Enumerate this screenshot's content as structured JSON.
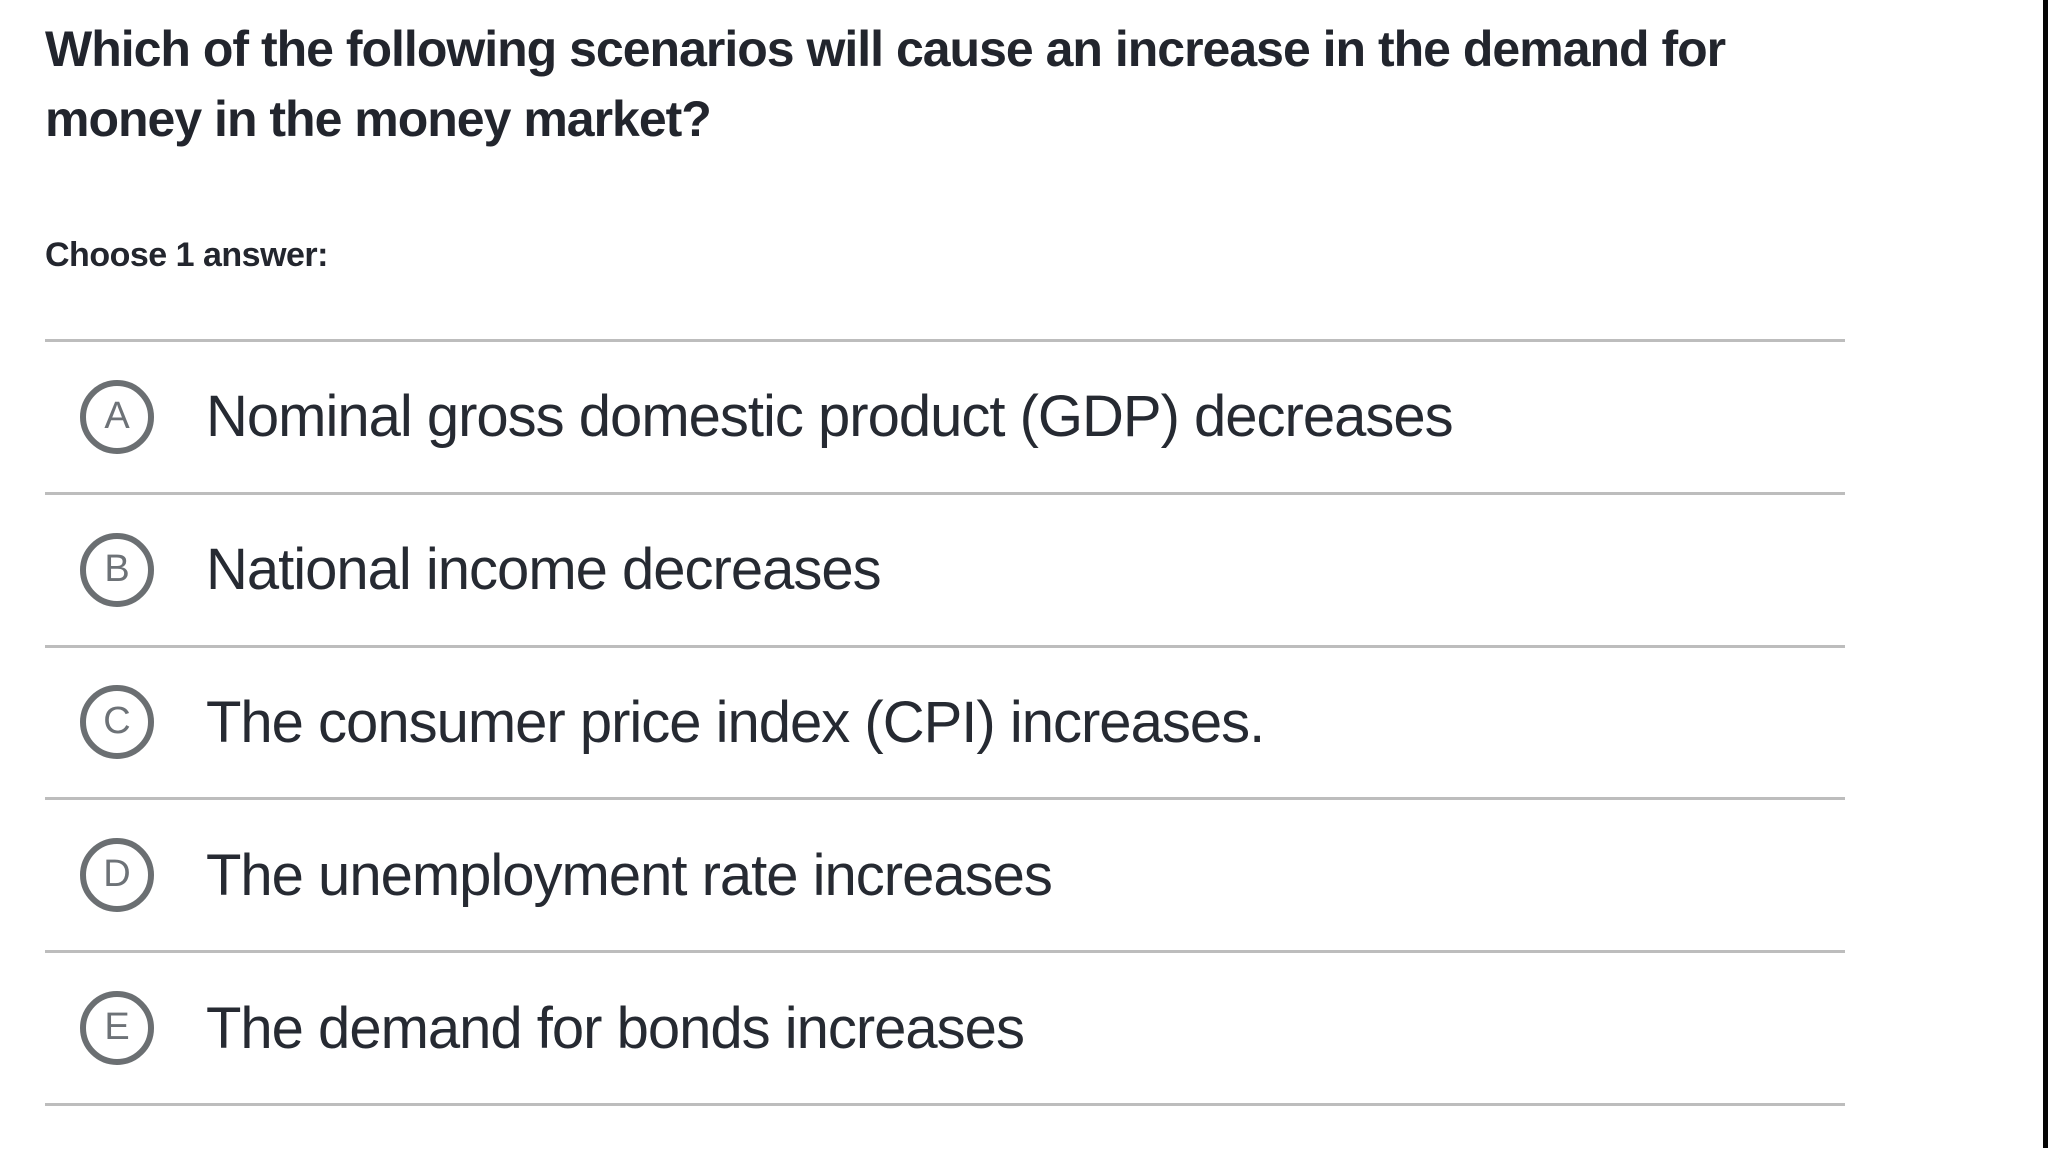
{
  "question": {
    "title_line1": "Which of the following scenarios will cause an increase in the demand for",
    "title_line2": "money in the money market?",
    "prompt": "Choose 1 answer:",
    "options": [
      {
        "letter": "A",
        "text": "Nominal gross domestic product (GDP) decreases"
      },
      {
        "letter": "B",
        "text": "National income decreases"
      },
      {
        "letter": "C",
        "text": "The consumer price index (CPI) increases."
      },
      {
        "letter": "D",
        "text": "The unemployment rate increases"
      },
      {
        "letter": "E",
        "text": "The demand for bonds increases"
      }
    ]
  },
  "colors": {
    "title_text": "#22252d",
    "option_text": "#262a32",
    "radio_ring": "#6b6f72",
    "radio_letter": "#6d7277",
    "divider": "#bdbdbd",
    "background": "#ffffff",
    "right_edge": "#050505"
  }
}
